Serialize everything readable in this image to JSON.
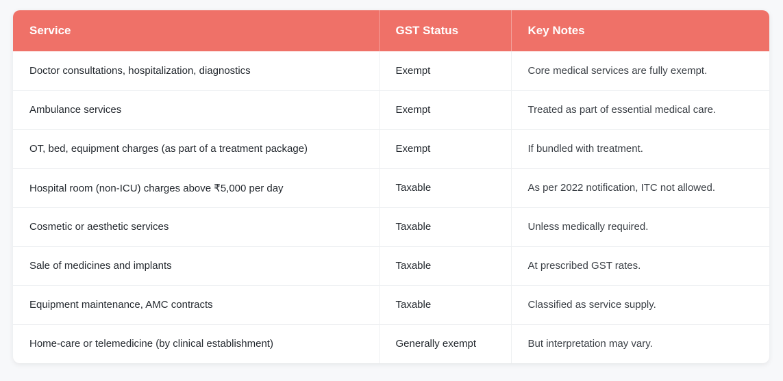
{
  "table": {
    "headers": [
      "Service",
      "GST Status",
      "Key Notes"
    ],
    "rows": [
      [
        "Doctor consultations, hospitalization, diagnostics",
        "Exempt",
        "Core medical services are fully exempt."
      ],
      [
        "Ambulance services",
        "Exempt",
        "Treated as part of essential medical care."
      ],
      [
        "OT, bed, equipment charges (as part of a treatment package)",
        "Exempt",
        "If bundled with treatment."
      ],
      [
        "Hospital room (non-ICU) charges above ₹5,000 per day",
        "Taxable",
        "As per 2022 notification, ITC not allowed."
      ],
      [
        "Cosmetic or aesthetic services",
        "Taxable",
        "Unless medically required."
      ],
      [
        "Sale of medicines and implants",
        "Taxable",
        "At prescribed GST rates."
      ],
      [
        "Equipment maintenance, AMC contracts",
        "Taxable",
        "Classified as service supply."
      ],
      [
        "Home-care or telemedicine (by clinical establishment)",
        "Generally exempt",
        "But interpretation may vary."
      ]
    ]
  },
  "colors": {
    "header_background": "#ef7168",
    "header_text": "#ffffff",
    "page_background": "#f7f8fa"
  }
}
